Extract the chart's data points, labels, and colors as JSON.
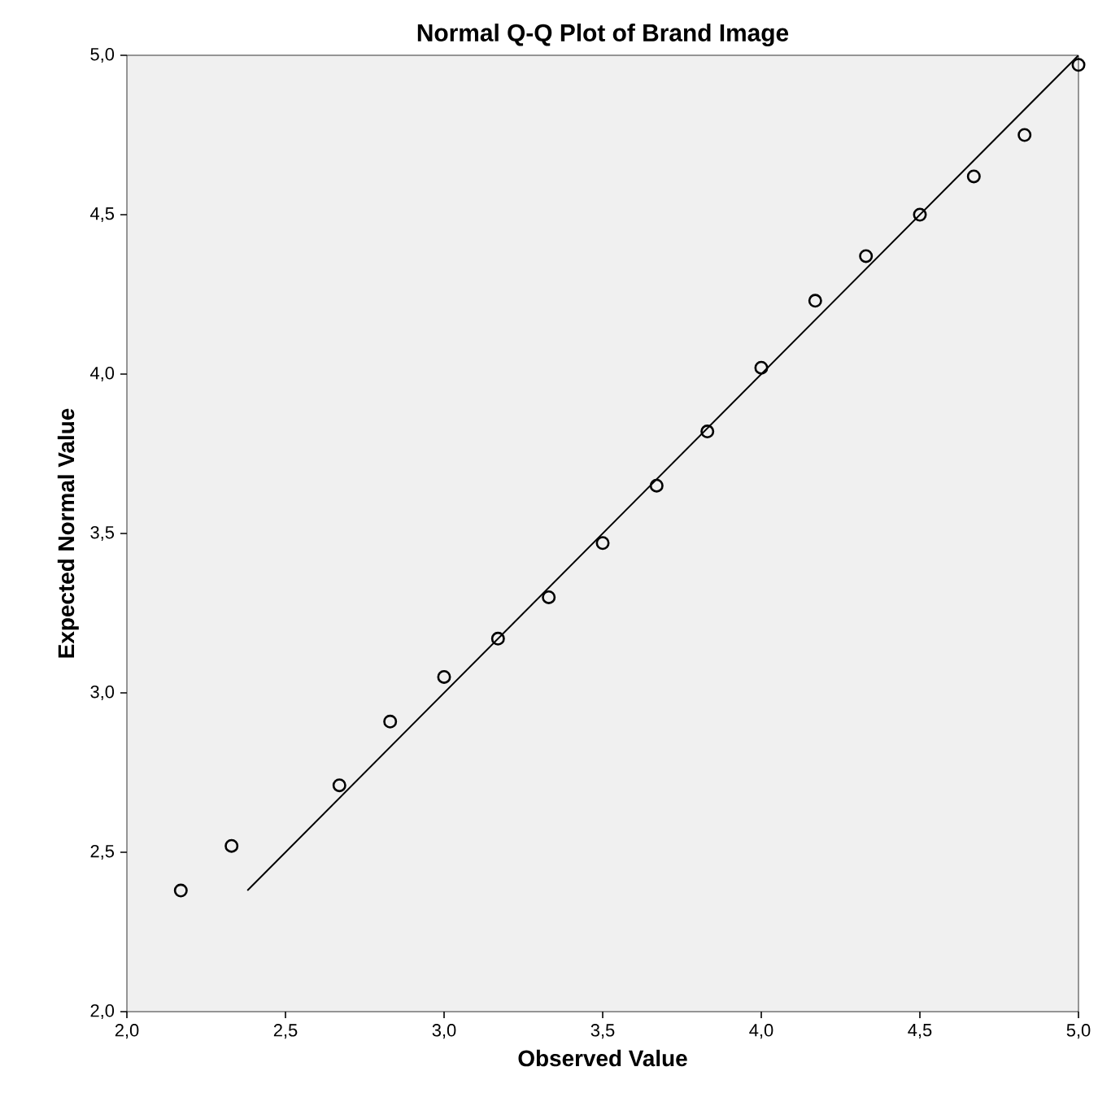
{
  "chart_data": {
    "type": "scatter",
    "title": "Normal Q-Q Plot of Brand Image",
    "xlabel": "Observed Value",
    "ylabel": "Expected Normal Value",
    "xlim": [
      2,
      5
    ],
    "ylim": [
      2,
      5
    ],
    "xticks": [
      {
        "value": 2,
        "label": "2,0"
      },
      {
        "value": 2.5,
        "label": "2,5"
      },
      {
        "value": 3,
        "label": "3,0"
      },
      {
        "value": 3.5,
        "label": "3,5"
      },
      {
        "value": 4,
        "label": "4,0"
      },
      {
        "value": 4.5,
        "label": "4,5"
      },
      {
        "value": 5,
        "label": "5,0"
      }
    ],
    "yticks": [
      {
        "value": 2,
        "label": "2,0"
      },
      {
        "value": 2.5,
        "label": "2,5"
      },
      {
        "value": 3,
        "label": "3,0"
      },
      {
        "value": 3.5,
        "label": "3,5"
      },
      {
        "value": 4,
        "label": "4,0"
      },
      {
        "value": 4.5,
        "label": "4,5"
      },
      {
        "value": 5,
        "label": "5,0"
      }
    ],
    "grid": false,
    "series": [
      {
        "marker": "circle",
        "color": "#000000",
        "x": [
          2.17,
          2.33,
          2.67,
          2.83,
          3.0,
          3.17,
          3.33,
          3.5,
          3.67,
          3.83,
          4.0,
          4.17,
          4.33,
          4.5,
          4.67,
          4.83,
          5.0
        ],
        "values": [
          2.38,
          2.52,
          2.71,
          2.91,
          3.05,
          3.17,
          3.3,
          3.47,
          3.65,
          3.82,
          4.02,
          4.23,
          4.37,
          4.5,
          4.62,
          4.75,
          4.97
        ]
      },
      {
        "type": "line",
        "marker": "none",
        "line_style": "solid",
        "color": "#000000",
        "x": [
          2.38,
          5.0
        ],
        "values": [
          2.38,
          5.0
        ]
      }
    ]
  }
}
